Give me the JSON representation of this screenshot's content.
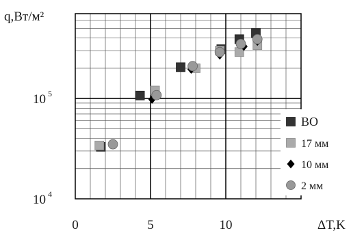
{
  "chart_data": {
    "type": "scatter",
    "ylabel": "q,Вт/м²",
    "xlabel": "ΔT,K",
    "xlim": [
      0,
      15
    ],
    "ylim": [
      10000,
      700000
    ],
    "y_scale": "log",
    "x_ticks": [
      "0",
      "5",
      "10"
    ],
    "x_tick_values": [
      0,
      5,
      10
    ],
    "y_ticks": [
      {
        "base": "10",
        "exp": "4",
        "value": 10000
      },
      {
        "base": "10",
        "exp": "5",
        "value": 100000
      }
    ],
    "grid": true,
    "legend_position": "bottom-right",
    "series": [
      {
        "name": "ВО",
        "marker": "square",
        "color": "#333333",
        "points": [
          [
            1.7,
            33000
          ],
          [
            4.3,
            107000
          ],
          [
            7.0,
            205000
          ],
          [
            9.7,
            310000
          ],
          [
            10.9,
            390000
          ],
          [
            12.0,
            450000
          ]
        ]
      },
      {
        "name": "17 мм",
        "marker": "square",
        "color": "#aaaaaa",
        "points": [
          [
            1.6,
            34000
          ],
          [
            5.3,
            120000
          ],
          [
            8.0,
            200000
          ],
          [
            9.6,
            300000
          ],
          [
            10.9,
            290000
          ],
          [
            12.1,
            340000
          ]
        ]
      },
      {
        "name": "10 мм",
        "marker": "diamond",
        "color": "#000000",
        "points": [
          [
            5.1,
            98000
          ],
          [
            7.7,
            195000
          ],
          [
            9.6,
            270000
          ],
          [
            11.2,
            330000
          ],
          [
            12.1,
            370000
          ]
        ]
      },
      {
        "name": "2 мм",
        "marker": "circle",
        "color": "#999999",
        "points": [
          [
            2.5,
            35000
          ],
          [
            5.4,
            108000
          ],
          [
            7.8,
            210000
          ],
          [
            9.6,
            290000
          ],
          [
            11.0,
            350000
          ],
          [
            12.1,
            390000
          ]
        ]
      }
    ]
  }
}
